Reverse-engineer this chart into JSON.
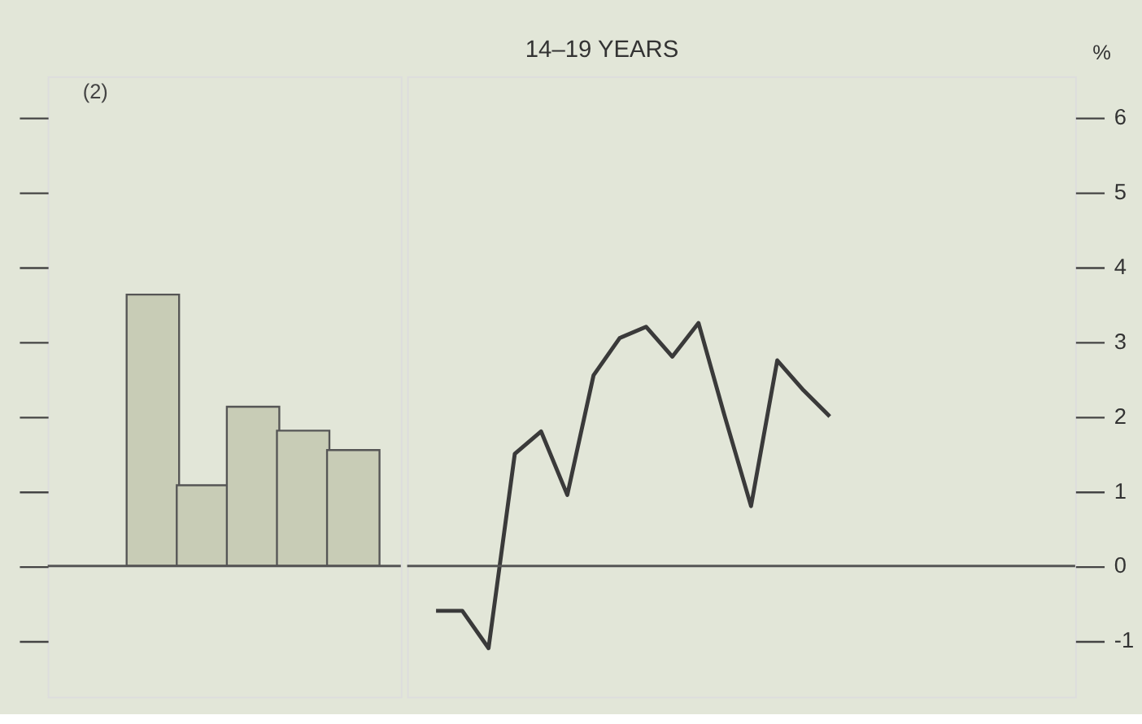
{
  "chart_data": [
    {
      "type": "bar",
      "annotations": [
        "(2)"
      ],
      "categories": [
        null,
        null,
        null,
        null,
        null
      ],
      "color": "#c8ccb6",
      "values": [
        3.63,
        1.08,
        2.13,
        1.81,
        1.55
      ],
      "ylim": [
        -1.75,
        6.55
      ],
      "yticks": [
        {
          "value": -1,
          "label": null
        },
        {
          "value": 0,
          "label": null
        },
        {
          "value": 1,
          "label": null
        },
        {
          "value": 2,
          "label": null
        },
        {
          "value": 3,
          "label": null
        },
        {
          "value": 4,
          "label": null
        },
        {
          "value": 5,
          "label": null
        },
        {
          "value": 6,
          "label": null
        }
      ],
      "tick_labels": false,
      "ref_lines": [
        {
          "axis": "y",
          "value": 0,
          "color": "#555555"
        }
      ]
    },
    {
      "type": "line",
      "title": "14–19 YEARS",
      "ylabel": "%",
      "categories": [
        null,
        null,
        null,
        null,
        null,
        null,
        null,
        null,
        null,
        null,
        null,
        null,
        null,
        null,
        null,
        null
      ],
      "color": "#3a3a3a",
      "line_style": "solid",
      "values": [
        -0.6,
        -0.6,
        -1.1,
        1.5,
        1.8,
        0.95,
        2.55,
        3.05,
        3.2,
        2.8,
        3.25,
        2.0,
        0.8,
        2.75,
        2.35,
        2.0
      ],
      "ylim": [
        -1.75,
        6.55
      ],
      "yticks": [
        -1,
        0,
        1,
        2,
        3,
        4,
        5,
        6
      ],
      "tick_labels": "y",
      "ref_lines": [
        {
          "axis": "y",
          "value": 0,
          "color": "#555555"
        }
      ]
    }
  ]
}
